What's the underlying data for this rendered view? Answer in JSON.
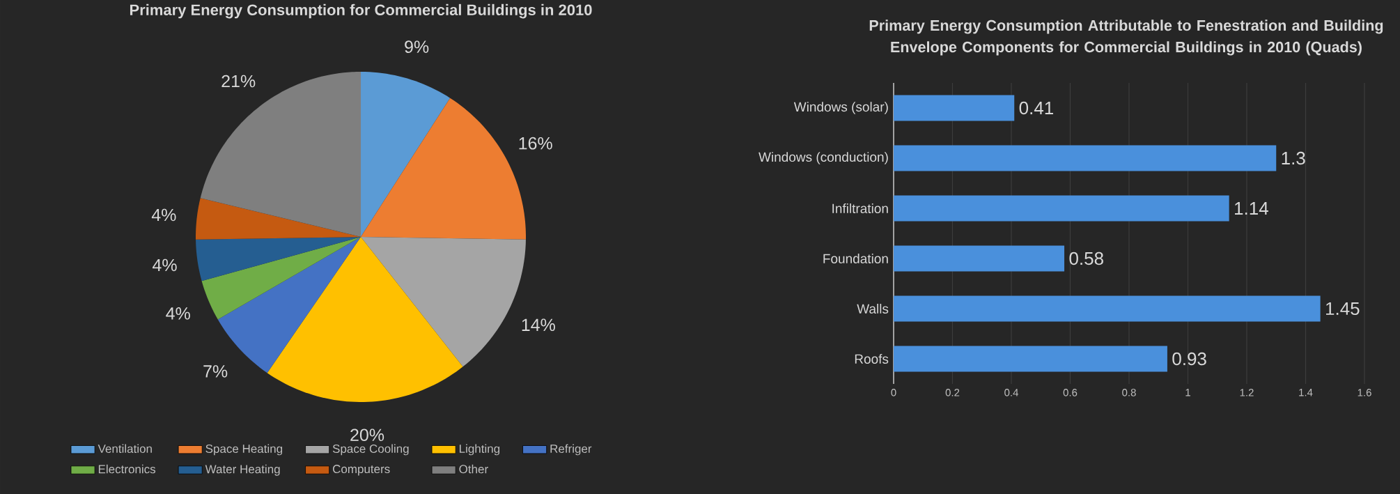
{
  "chart_data": [
    {
      "type": "pie",
      "title": "Primary Energy Consumption for Commercial Buildings in 2010",
      "categories": [
        "Ventilation",
        "Space Heating",
        "Space Cooling",
        "Lighting",
        "Refriger",
        "Electronics",
        "Water Heating",
        "Computers",
        "Other"
      ],
      "values": [
        9,
        16,
        14,
        20,
        7,
        4,
        4,
        4,
        21
      ],
      "value_labels": [
        "9%",
        "16%",
        "14%",
        "20%",
        "7%",
        "4%",
        "4%",
        "4%",
        "21%"
      ],
      "colors": [
        "#5b9bd5",
        "#ed7d31",
        "#a5a5a5",
        "#ffc000",
        "#4472c4",
        "#70ad47",
        "#255e91",
        "#c55a11",
        "#7f7f7f"
      ],
      "legend": "bottom"
    },
    {
      "type": "bar",
      "orientation": "horizontal",
      "title": "Primary Energy Consumption Attributable to Fenestration and Building Envelope Components for Commercial Buildings in 2010 (Quads)",
      "categories": [
        "Windows (solar)",
        "Windows (conduction)",
        "Infiltration",
        "Foundation",
        "Walls",
        "Roofs"
      ],
      "values": [
        0.41,
        1.3,
        1.14,
        0.58,
        1.45,
        0.93
      ],
      "color": "#4a90dc",
      "xlim": [
        0,
        1.6
      ],
      "xticks": [
        0,
        0.2,
        0.4,
        0.6,
        0.8,
        1,
        1.2,
        1.4,
        1.6
      ],
      "data_labels": true,
      "grid": "x"
    }
  ]
}
